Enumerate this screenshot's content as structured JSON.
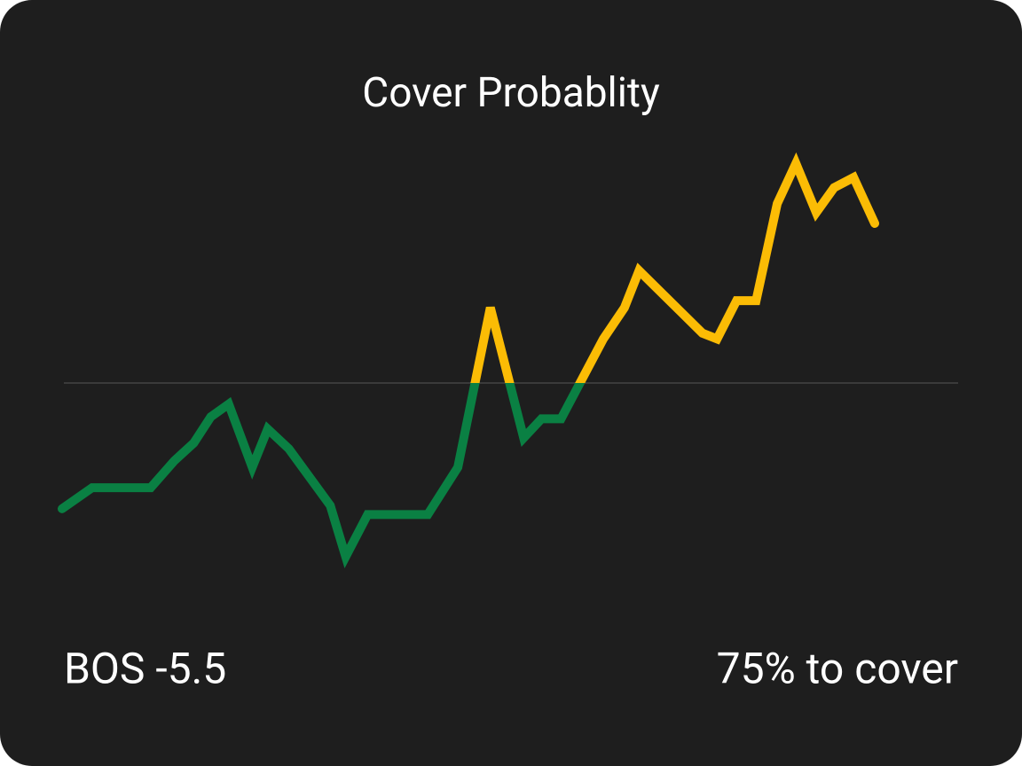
{
  "chart_data": {
    "type": "line",
    "title": "Cover Probablity",
    "annotations": [
      "BOS -5.5",
      "75% to cover"
    ],
    "x": [
      0,
      3.7,
      10.9,
      13.8,
      16.2,
      18.3,
      20.5,
      23.4,
      25.3,
      27.9,
      33.0,
      34.9,
      37.6,
      45.0,
      48.7,
      52.7,
      56.8,
      59.0,
      61.4,
      66.6,
      69.2,
      71.0,
      78.8,
      80.6,
      83.0,
      85.4,
      88.0,
      90.3,
      92.8,
      95.0,
      97.4,
      100
    ],
    "values": [
      30.3,
      33.6,
      33.6,
      37.8,
      40.6,
      44.7,
      46.7,
      36.8,
      42.8,
      39.7,
      30.8,
      22.8,
      29.4,
      29.4,
      36.8,
      61.8,
      41.4,
      44.4,
      44.4,
      56.9,
      61.8,
      67.6,
      57.8,
      56.9,
      62.9,
      62.9,
      78.1,
      84.4,
      76.7,
      80.6,
      82.2,
      75.0
    ],
    "xlim": [
      0,
      100
    ],
    "ylim": [
      0,
      100
    ],
    "threshold": 50,
    "color_below": "#0a8043",
    "color_above": "#fbbc05"
  }
}
